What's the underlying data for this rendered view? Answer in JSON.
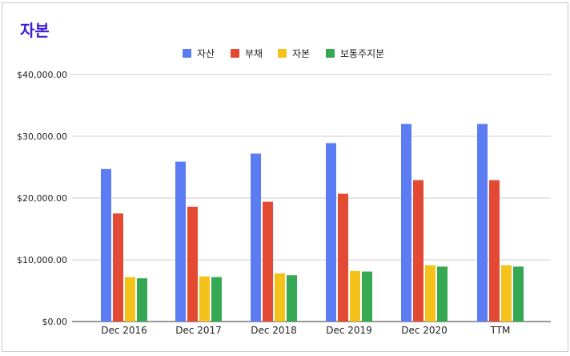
{
  "chart_data": {
    "type": "bar",
    "title": "자본",
    "categories": [
      "Dec 2016",
      "Dec 2017",
      "Dec 2018",
      "Dec 2019",
      "Dec 2020",
      "TTM"
    ],
    "series": [
      {
        "name": "자산",
        "color": "#5b7cf2",
        "values": [
          24700,
          25900,
          27200,
          28900,
          32000,
          32000
        ]
      },
      {
        "name": "부채",
        "color": "#e24a33",
        "values": [
          17500,
          18600,
          19400,
          20700,
          22900,
          22900
        ]
      },
      {
        "name": "자본",
        "color": "#f5c21b",
        "values": [
          7200,
          7300,
          7800,
          8200,
          9100,
          9100
        ]
      },
      {
        "name": "보통주지분",
        "color": "#34a853",
        "values": [
          7000,
          7200,
          7500,
          8100,
          8900,
          8900
        ]
      }
    ],
    "yticks": [
      "$0.00",
      "$10,000.00",
      "$20,000.00",
      "$30,000.00",
      "$40,000.00"
    ],
    "ylim": [
      0,
      40000
    ],
    "grid": true,
    "legend": "top-center"
  }
}
